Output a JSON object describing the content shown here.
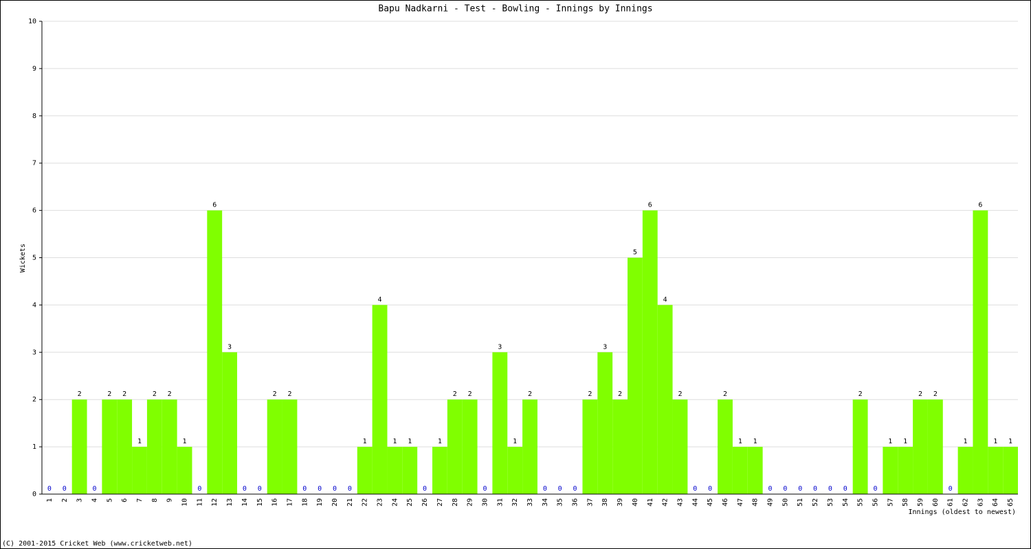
{
  "chart_data": {
    "type": "bar",
    "title": "Bapu Nadkarni - Test - Bowling - Innings by Innings",
    "x_label": "Innings (oldest to newest)",
    "y_label": "Wickets",
    "footer": "(C) 2001-2015 Cricket Web (www.cricketweb.net)",
    "categories": [
      "1",
      "2",
      "3",
      "4",
      "5",
      "6",
      "7",
      "8",
      "9",
      "10",
      "11",
      "12",
      "13",
      "14",
      "15",
      "16",
      "17",
      "18",
      "19",
      "20",
      "21",
      "22",
      "23",
      "24",
      "25",
      "26",
      "27",
      "28",
      "29",
      "30",
      "31",
      "32",
      "33",
      "34",
      "35",
      "36",
      "37",
      "38",
      "39",
      "40",
      "41",
      "42",
      "43",
      "44",
      "45",
      "46",
      "47",
      "48",
      "49",
      "50",
      "51",
      "52",
      "53",
      "54",
      "55",
      "56",
      "57",
      "58",
      "59",
      "60",
      "61",
      "62",
      "63",
      "64",
      "65"
    ],
    "values": [
      0,
      0,
      2,
      0,
      2,
      2,
      1,
      2,
      2,
      1,
      0,
      6,
      3,
      0,
      0,
      2,
      2,
      0,
      0,
      0,
      0,
      1,
      4,
      1,
      1,
      0,
      1,
      2,
      2,
      0,
      3,
      1,
      2,
      0,
      0,
      0,
      2,
      3,
      2,
      5,
      6,
      4,
      2,
      0,
      0,
      2,
      1,
      1,
      0,
      0,
      0,
      0,
      0,
      0,
      2,
      0,
      1,
      1,
      2,
      2,
      0,
      1,
      6,
      1,
      1
    ],
    "color": "#80ff00",
    "ylim": [
      0,
      10
    ],
    "yticks": [
      0,
      1,
      2,
      3,
      4,
      5,
      6,
      7,
      8,
      9,
      10
    ],
    "grid": true
  }
}
